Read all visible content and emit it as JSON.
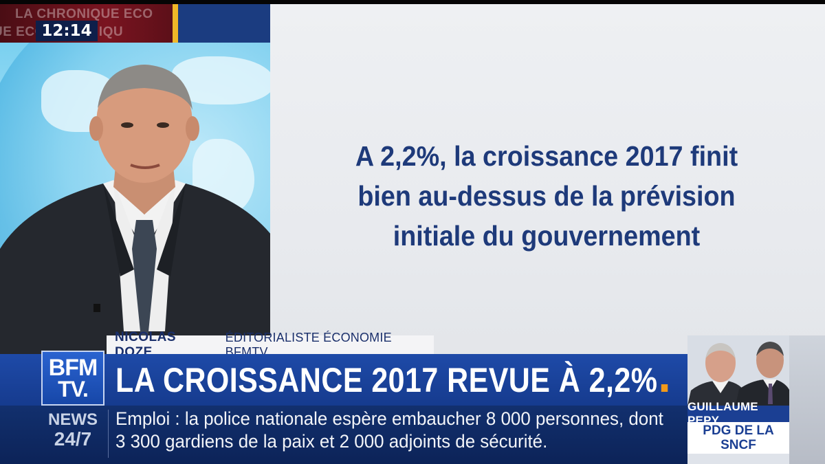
{
  "colors": {
    "brand_blue": "#1e4aa8",
    "accent_orange": "#f29a1a",
    "panel_text": "#1e3a7a",
    "chronique_red": "#7a1420",
    "yellow": "#f0b828"
  },
  "program": {
    "tag_line1": "LA CHRONIQUE ECO",
    "tag_line2": "UE ECO CHRONIQU",
    "time": "12:14"
  },
  "panel": {
    "line1": "A 2,2%, la croissance 2017 finit",
    "line2": "bien au-dessus de la prévision",
    "line3": "initiale du gouvernement"
  },
  "lower_third": {
    "name": "NICOLAS DOZE",
    "role": "ÉDITORIALISTE ÉCONOMIE BFMTV",
    "headline": "LA CROISSANCE 2017 REVUE À 2,2%"
  },
  "logo": {
    "line1": "BFM",
    "line2": "TV."
  },
  "ticker": {
    "label_line1": "NEWS",
    "label_line2": "24/7",
    "text_line1": "Emploi : la police nationale espère embaucher 8 000 personnes, dont",
    "text_line2": "3 300 gardiens de la paix et 2 000 adjoints de sécurité."
  },
  "guest": {
    "name": "GUILLAUME PEPY",
    "role_line1": "PDG DE LA",
    "role_line2": "SNCF"
  }
}
